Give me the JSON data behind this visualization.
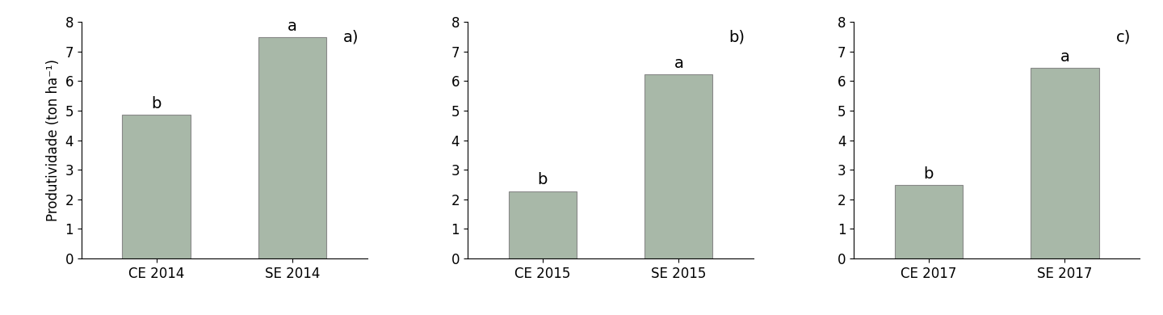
{
  "panels": [
    {
      "label": "a)",
      "bars": [
        {
          "x_label": "CE 2014",
          "value": 4.85,
          "sig": "b"
        },
        {
          "x_label": "SE 2014",
          "value": 7.48,
          "sig": "a"
        }
      ]
    },
    {
      "label": "b)",
      "bars": [
        {
          "x_label": "CE 2015",
          "value": 2.27,
          "sig": "b"
        },
        {
          "x_label": "SE 2015",
          "value": 6.22,
          "sig": "a"
        }
      ]
    },
    {
      "label": "c)",
      "bars": [
        {
          "x_label": "CE 2017",
          "value": 2.47,
          "sig": "b"
        },
        {
          "x_label": "SE 2017",
          "value": 6.45,
          "sig": "a"
        }
      ]
    }
  ],
  "ylim": [
    0,
    8
  ],
  "yticks": [
    0,
    1,
    2,
    3,
    4,
    5,
    6,
    7,
    8
  ],
  "ylabel": "Produtividade (ton ha⁻¹)",
  "bar_color": "#a8b8a8",
  "bar_edgecolor": "#888888",
  "bar_width": 0.5,
  "sig_fontsize": 14,
  "tick_fontsize": 12,
  "ylabel_fontsize": 12,
  "panel_label_fontsize": 14,
  "background_color": "#ffffff"
}
